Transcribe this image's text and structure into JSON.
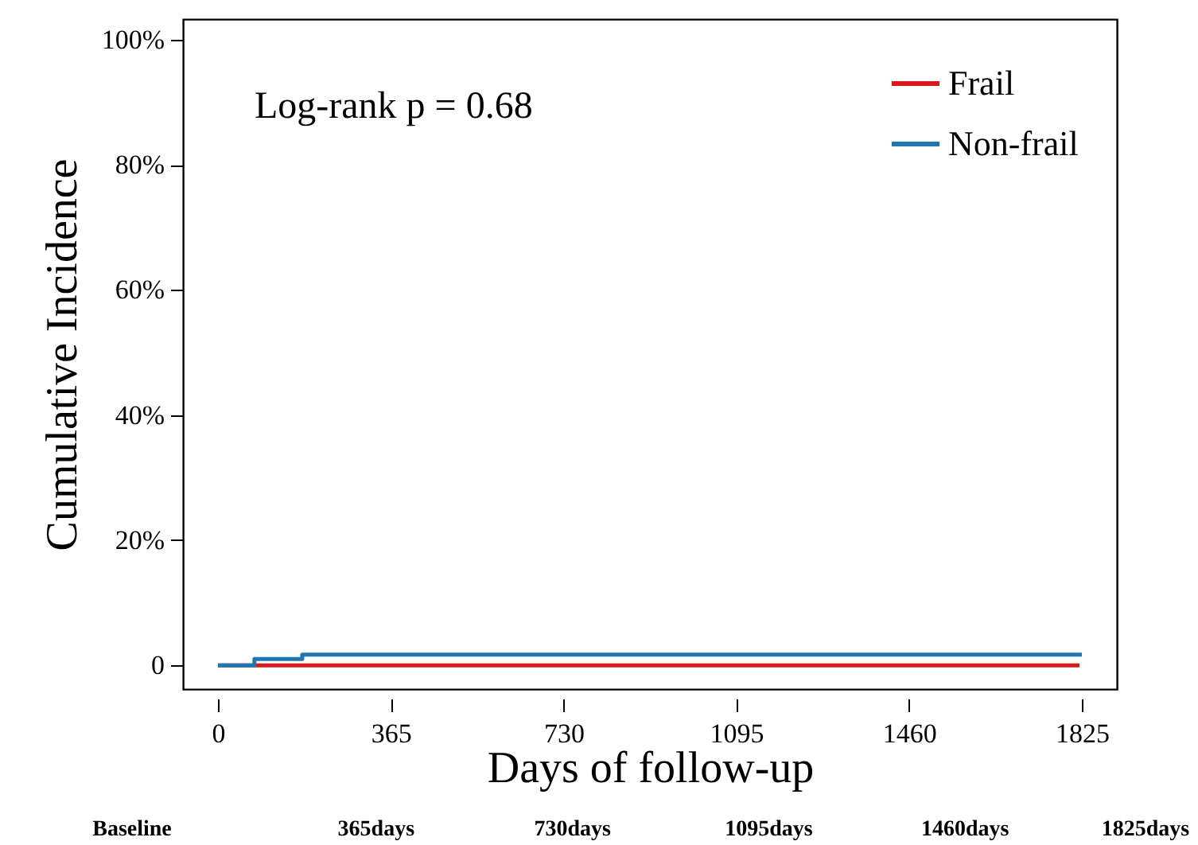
{
  "chart_data": {
    "type": "step",
    "xlabel": "Days of follow-up",
    "ylabel": "Cumulative Incidence",
    "series": [
      {
        "name": "Frail",
        "color": "#d7191c",
        "x": [
          0,
          1820
        ],
        "values": [
          0,
          0
        ]
      },
      {
        "name": "Non-frail",
        "color": "#1f78b4",
        "x": [
          0,
          77,
          178,
          1825
        ],
        "values": [
          0,
          1.0,
          1.7,
          1.7
        ]
      }
    ],
    "xlim": [
      -74,
      1899
    ],
    "ylim": [
      -3.8,
      103.3
    ],
    "xticks": [
      0,
      365,
      730,
      1095,
      1460,
      1825
    ],
    "yticks": [
      0,
      {
        "value": 20,
        "label": "20%"
      },
      {
        "value": 40,
        "label": "40%"
      },
      {
        "value": 60,
        "label": "60%"
      },
      {
        "value": 80,
        "label": "80%"
      },
      {
        "value": 100,
        "label": "100%"
      }
    ],
    "annotations": [
      "Log-rank p = 0.68",
      "Baseline",
      "365days",
      "730days",
      "1095days",
      "1460days",
      "1825days"
    ],
    "legend": "top right",
    "grid": false,
    "line_style": "solid",
    "marker": "none"
  }
}
